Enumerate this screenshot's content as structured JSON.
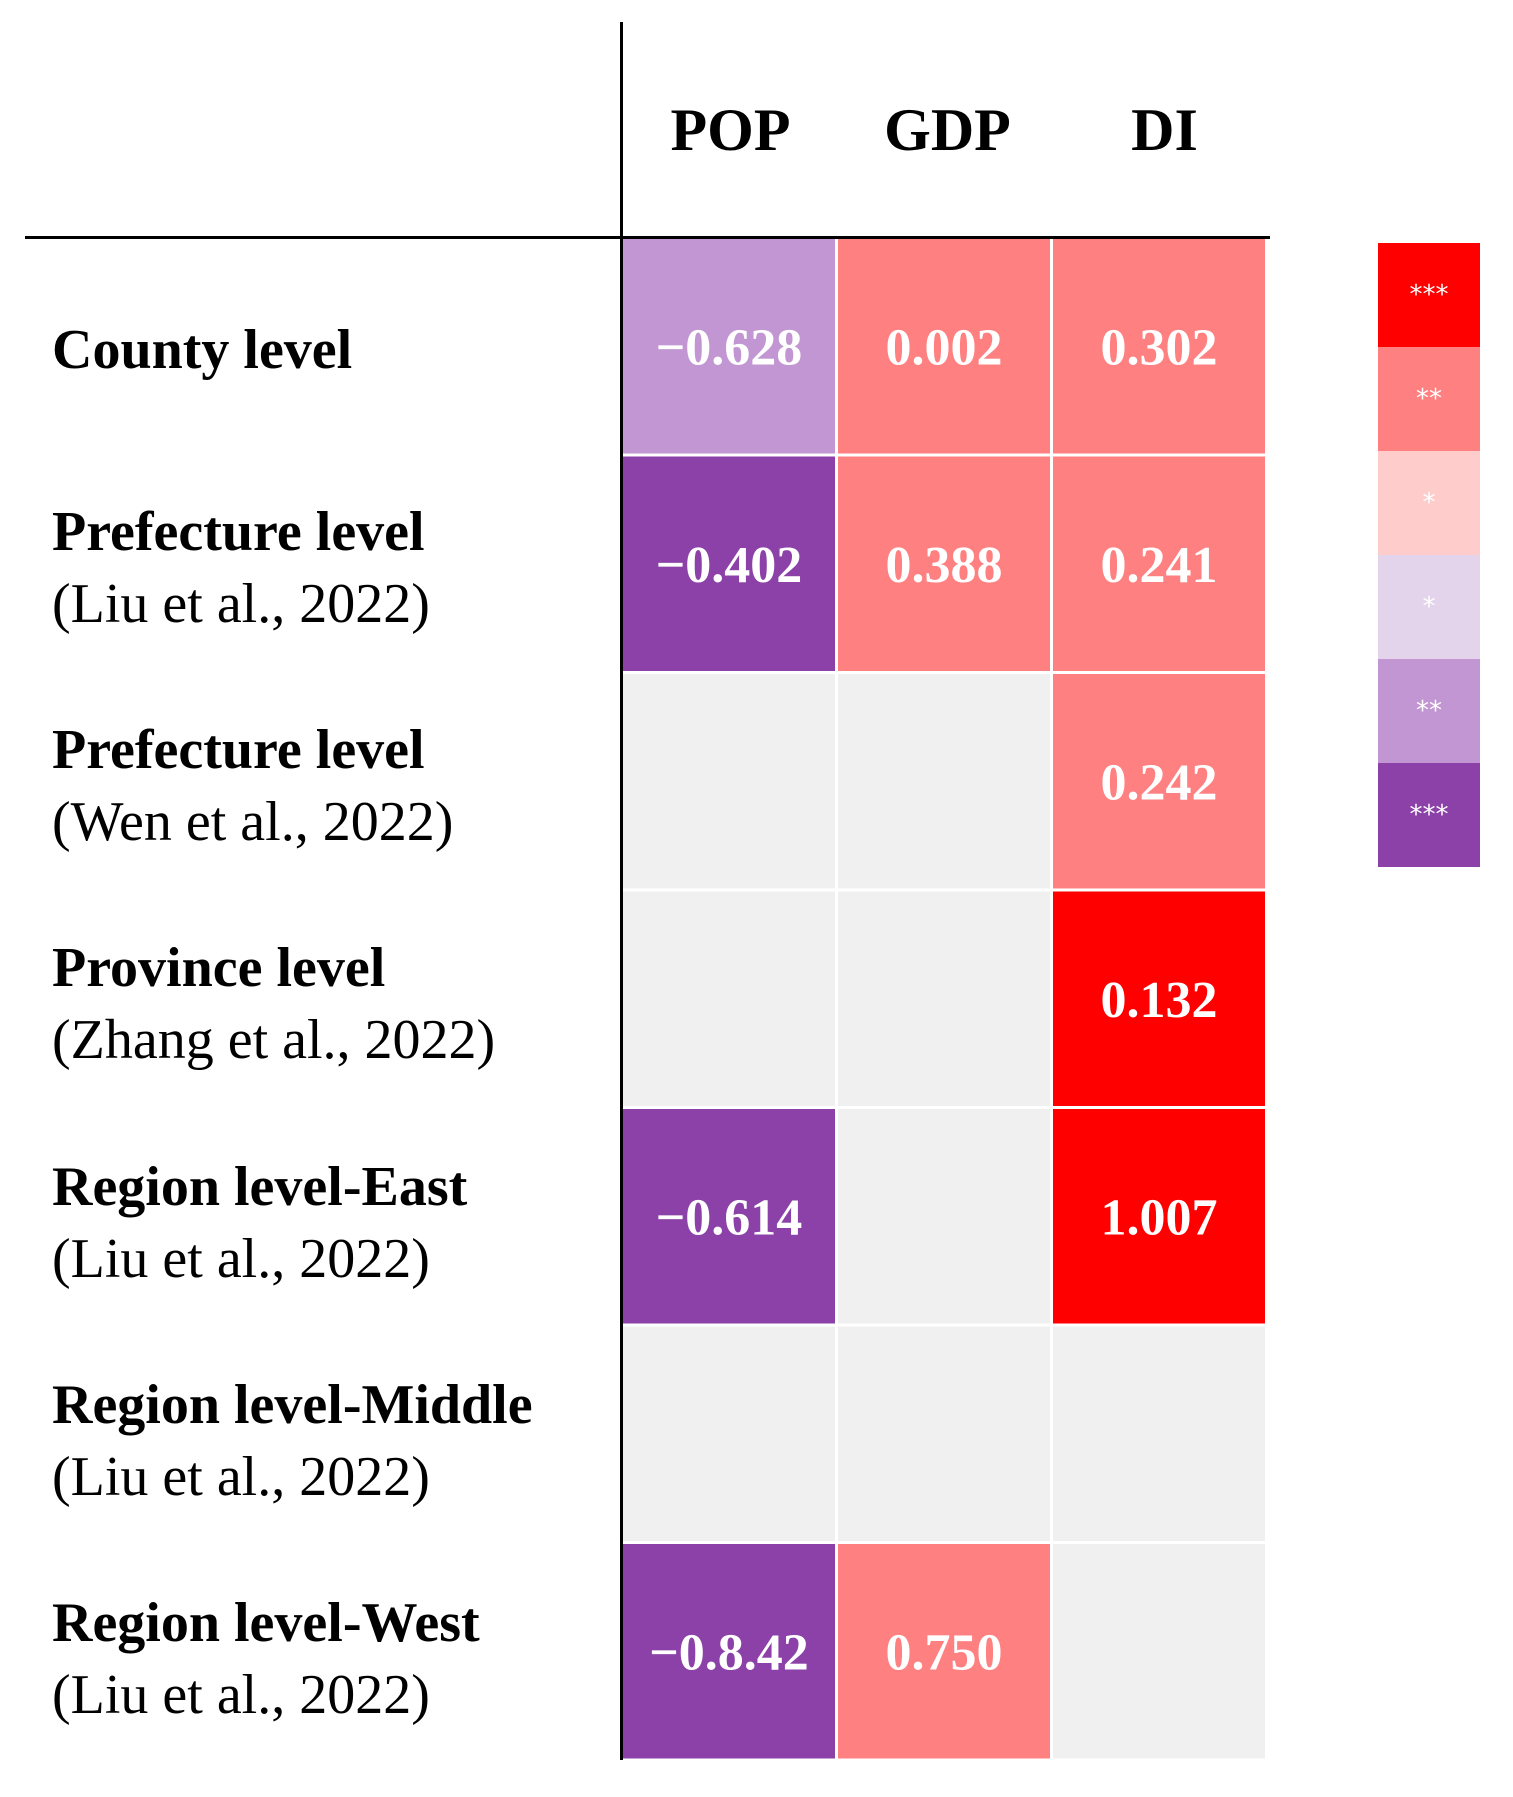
{
  "chart_data": {
    "type": "heatmap",
    "title": "",
    "columns": [
      "POP",
      "GDP",
      "DI"
    ],
    "rows": [
      {
        "label": "County level",
        "source": "",
        "values": [
          "−0.628",
          "0.002",
          "0.302"
        ],
        "sig": [
          -2,
          2,
          2
        ]
      },
      {
        "label": "Prefecture level",
        "source": "(Liu et al., 2022)",
        "values": [
          "−0.402",
          "0.388",
          "0.241"
        ],
        "sig": [
          -3,
          2,
          2
        ]
      },
      {
        "label": "Prefecture level",
        "source": "(Wen et al., 2022)",
        "values": [
          "",
          "",
          "0.242"
        ],
        "sig": [
          0,
          0,
          2
        ]
      },
      {
        "label": "Province level",
        "source": "(Zhang et al., 2022)",
        "values": [
          "",
          "",
          "0.132"
        ],
        "sig": [
          0,
          0,
          3
        ]
      },
      {
        "label": "Region level-East",
        "source": "(Liu et al., 2022)",
        "values": [
          "−0.614",
          "",
          "1.007"
        ],
        "sig": [
          -3,
          0,
          3
        ]
      },
      {
        "label": "Region level-Middle",
        "source": "(Liu et al., 2022)",
        "values": [
          "",
          "",
          ""
        ],
        "sig": [
          0,
          0,
          0
        ]
      },
      {
        "label": "Region level-West",
        "source": "(Liu et al., 2022)",
        "values": [
          "−0.8.42",
          "0.750",
          ""
        ],
        "sig": [
          -3,
          2,
          0
        ]
      }
    ],
    "legend": [
      {
        "label": "***",
        "sig": 3
      },
      {
        "label": "**",
        "sig": 2
      },
      {
        "label": "*",
        "sig": 1
      },
      {
        "label": "*",
        "sig": -1
      },
      {
        "label": "**",
        "sig": -2
      },
      {
        "label": "***",
        "sig": -3
      }
    ],
    "colors": {
      "pos3": "#ff0000",
      "pos2": "#ff8080",
      "pos1": "#ffcccc",
      "neg1": "#e3d3eb",
      "neg2": "#c196d2",
      "neg3": "#8b41a8",
      "empty": "#f0f0f0"
    }
  }
}
